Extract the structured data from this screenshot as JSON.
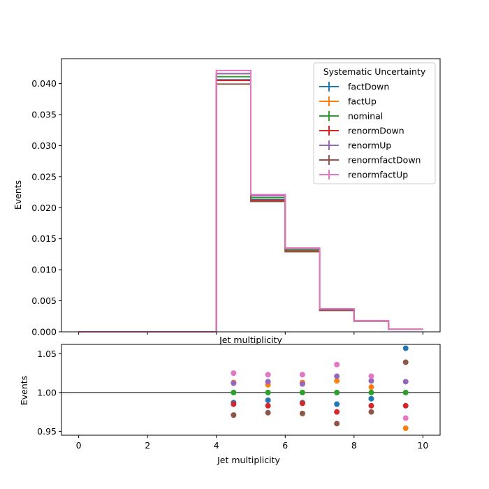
{
  "chart_data": [
    {
      "type": "line",
      "drawstyle": "step",
      "xlabel": "Jet multiplicity",
      "ylabel": "Events",
      "xlim": [
        -0.5,
        10.5
      ],
      "ylim": [
        0.0,
        0.044
      ],
      "xticks": [
        0,
        2,
        4,
        6,
        8,
        10
      ],
      "yticks": [
        "0.000",
        "0.005",
        "0.010",
        "0.015",
        "0.020",
        "0.025",
        "0.030",
        "0.035",
        "0.040"
      ],
      "bin_edges": [
        0,
        1,
        2,
        3,
        4,
        5,
        6,
        7,
        8,
        9,
        10
      ],
      "legend": {
        "title": "Systematic Uncertainty",
        "placement": "top-right"
      },
      "series": [
        {
          "name": "factDown",
          "color": "#1f77b4",
          "values": [
            0,
            0,
            0,
            0,
            0.0406,
            0.0213,
            0.0131,
            0.00355,
            0.00175,
            0.0004
          ]
        },
        {
          "name": "factUp",
          "color": "#ff7f0e",
          "values": [
            0,
            0,
            0,
            0,
            0.0416,
            0.0219,
            0.0134,
            0.00365,
            0.0018,
            0.00039
          ]
        },
        {
          "name": "nominal",
          "color": "#2ca02c",
          "values": [
            0,
            0,
            0,
            0,
            0.0411,
            0.0216,
            0.0132,
            0.0036,
            0.00178,
            0.0004
          ]
        },
        {
          "name": "renormDown",
          "color": "#d62728",
          "values": [
            0,
            0,
            0,
            0,
            0.0405,
            0.0212,
            0.013,
            0.00352,
            0.00175,
            0.00039
          ]
        },
        {
          "name": "renormUp",
          "color": "#9467bd",
          "values": [
            0,
            0,
            0,
            0,
            0.0416,
            0.0219,
            0.0134,
            0.00367,
            0.0018,
            0.00041
          ]
        },
        {
          "name": "renormfactDown",
          "color": "#8c564b",
          "values": [
            0,
            0,
            0,
            0,
            0.0399,
            0.021,
            0.0129,
            0.00345,
            0.00173,
            0.00042
          ]
        },
        {
          "name": "renormfactUp",
          "color": "#e377c2",
          "values": [
            0,
            0,
            0,
            0,
            0.0421,
            0.0221,
            0.0135,
            0.00372,
            0.00182,
            0.00039
          ]
        }
      ]
    },
    {
      "type": "scatter",
      "xlabel": "Jet multiplicity",
      "ylabel": "Events",
      "xlim": [
        -0.5,
        10.5
      ],
      "ylim": [
        0.945,
        1.062
      ],
      "xticks": [
        0,
        2,
        4,
        6,
        8,
        10
      ],
      "yticks": [
        "0.95",
        "1.00",
        "1.05"
      ],
      "reference_line": 1.0,
      "x": [
        4.5,
        5.5,
        6.5,
        7.5,
        8.5,
        9.5
      ],
      "series": [
        {
          "name": "factDown",
          "color": "#1f77b4",
          "values": [
            0.987,
            0.99,
            0.987,
            0.985,
            0.992,
            1.057
          ]
        },
        {
          "name": "factUp",
          "color": "#ff7f0e",
          "values": [
            1.013,
            1.01,
            1.013,
            1.015,
            1.007,
            0.954
          ]
        },
        {
          "name": "nominal",
          "color": "#2ca02c",
          "values": [
            1.0,
            1.0,
            1.0,
            1.0,
            1.0,
            1.0
          ]
        },
        {
          "name": "renormDown",
          "color": "#d62728",
          "values": [
            0.985,
            0.983,
            0.986,
            0.975,
            0.983,
            0.983
          ]
        },
        {
          "name": "renormUp",
          "color": "#9467bd",
          "values": [
            1.012,
            1.014,
            1.011,
            1.021,
            1.015,
            1.014
          ]
        },
        {
          "name": "renormfactDown",
          "color": "#8c564b",
          "values": [
            0.971,
            0.974,
            0.973,
            0.96,
            0.975,
            1.039
          ]
        },
        {
          "name": "renormfactUp",
          "color": "#e377c2",
          "values": [
            1.025,
            1.023,
            1.023,
            1.036,
            1.021,
            0.967
          ]
        }
      ]
    }
  ]
}
